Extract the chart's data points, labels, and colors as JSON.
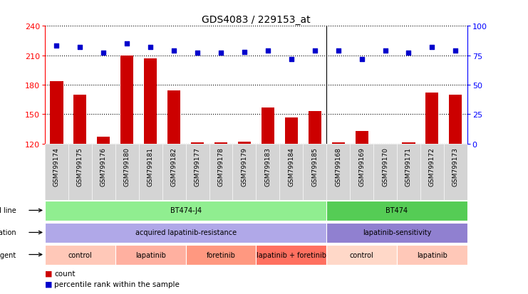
{
  "title": "GDS4083 / 229153_at",
  "samples": [
    "GSM799174",
    "GSM799175",
    "GSM799176",
    "GSM799180",
    "GSM799181",
    "GSM799182",
    "GSM799177",
    "GSM799178",
    "GSM799179",
    "GSM799183",
    "GSM799184",
    "GSM799185",
    "GSM799168",
    "GSM799169",
    "GSM799170",
    "GSM799171",
    "GSM799172",
    "GSM799173"
  ],
  "counts": [
    184,
    170,
    127,
    210,
    207,
    174,
    121,
    121,
    122,
    157,
    147,
    153,
    121,
    133,
    120,
    121,
    172,
    170
  ],
  "percentiles": [
    83,
    82,
    77,
    85,
    82,
    79,
    77,
    77,
    78,
    79,
    72,
    79,
    79,
    72,
    79,
    77,
    82,
    79
  ],
  "ylim_left": [
    120,
    240
  ],
  "ylim_right": [
    0,
    100
  ],
  "yticks_left": [
    120,
    150,
    180,
    210,
    240
  ],
  "yticks_right": [
    0,
    25,
    50,
    75,
    100
  ],
  "bar_color": "#cc0000",
  "dot_color": "#0000cc",
  "cell_line_groups": [
    {
      "label": "BT474-J4",
      "start": 0,
      "end": 11,
      "color": "#90ee90"
    },
    {
      "label": "BT474",
      "start": 12,
      "end": 17,
      "color": "#55cc55"
    }
  ],
  "genotype_groups": [
    {
      "label": "acquired lapatinib-resistance",
      "start": 0,
      "end": 11,
      "color": "#b0a8e8"
    },
    {
      "label": "lapatinib-sensitivity",
      "start": 12,
      "end": 17,
      "color": "#9080d0"
    }
  ],
  "agent_groups": [
    {
      "label": "control",
      "start": 0,
      "end": 2,
      "color": "#ffc8b8"
    },
    {
      "label": "lapatinib",
      "start": 3,
      "end": 5,
      "color": "#ffb0a0"
    },
    {
      "label": "foretinib",
      "start": 6,
      "end": 8,
      "color": "#ff9880"
    },
    {
      "label": "lapatinib + foretinib",
      "start": 9,
      "end": 11,
      "color": "#ff7060"
    },
    {
      "label": "control",
      "start": 12,
      "end": 14,
      "color": "#ffd8c8"
    },
    {
      "label": "lapatinib",
      "start": 15,
      "end": 17,
      "color": "#ffc8b8"
    }
  ],
  "legend_count_label": "count",
  "legend_pct_label": "percentile rank within the sample",
  "group_divider": 11.5,
  "tick_bg_color": "#d4d4d4"
}
